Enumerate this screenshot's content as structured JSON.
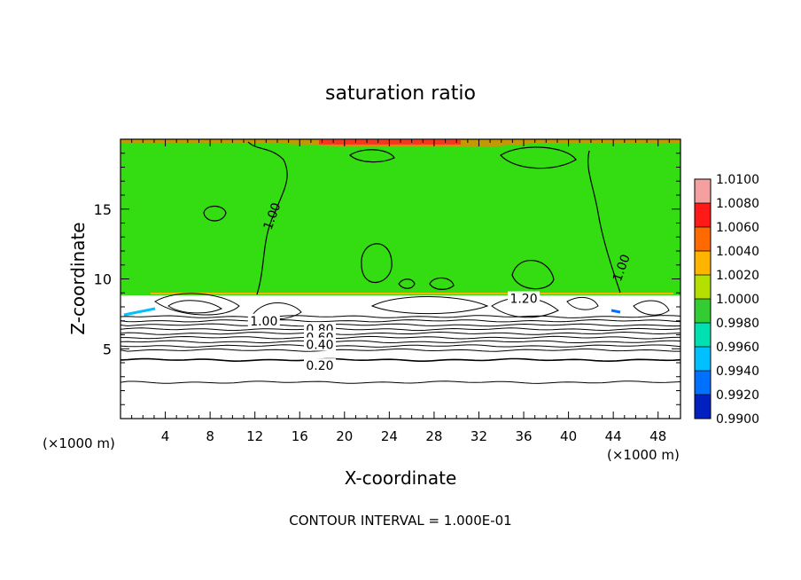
{
  "chart_data": {
    "type": "heatmap",
    "title": "saturation ratio",
    "xlabel": "X-coordinate",
    "ylabel": "Z-coordinate",
    "x_unit": "(×1000 m)",
    "x_unit_right": "(×1000 m)",
    "x_ticks": [
      4,
      8,
      12,
      16,
      20,
      24,
      28,
      32,
      36,
      40,
      44,
      48
    ],
    "y_ticks": [
      5,
      10,
      15
    ],
    "xlim": [
      0,
      50
    ],
    "ylim": [
      0,
      20
    ],
    "footnote": "CONTOUR INTERVAL = 1.000E-01",
    "colorbar": {
      "levels": [
        {
          "label": "1.0100",
          "color": "#f4a0a0"
        },
        {
          "label": "1.0080",
          "color": "#ff1a1a"
        },
        {
          "label": "1.0060",
          "color": "#ff6a00"
        },
        {
          "label": "1.0040",
          "color": "#ffb400"
        },
        {
          "label": "1.0020",
          "color": "#b4e000"
        },
        {
          "label": "1.0000",
          "color": "#33cc33"
        },
        {
          "label": "0.9980",
          "color": "#00e0b0"
        },
        {
          "label": "0.9960",
          "color": "#00c0ff"
        },
        {
          "label": "0.9940",
          "color": "#0070ff"
        },
        {
          "label": "0.9920",
          "color": "#0020c0"
        },
        {
          "label": "0.9900",
          "color": "#7a20b0"
        }
      ]
    },
    "field_color": "#33dd11",
    "contour_labels": [
      {
        "text": "1.00",
        "x": 13.5,
        "z": 14.5
      },
      {
        "text": "1.00",
        "x": 44.7,
        "z": 10.8
      },
      {
        "text": "1.20",
        "x": 36.0,
        "z": 8.6
      },
      {
        "text": "1.00",
        "x": 12.8,
        "z": 7.0
      },
      {
        "text": "0.80",
        "x": 17.8,
        "z": 6.4
      },
      {
        "text": "0.60",
        "x": 17.8,
        "z": 5.8
      },
      {
        "text": "0.40",
        "x": 17.8,
        "z": 5.3
      },
      {
        "text": "0.20",
        "x": 17.8,
        "z": 3.8
      }
    ],
    "horizontal_contours_z": [
      7.3,
      7.0,
      6.7,
      6.4,
      6.1,
      5.8,
      5.5,
      5.2,
      4.9,
      4.2,
      2.6
    ]
  }
}
